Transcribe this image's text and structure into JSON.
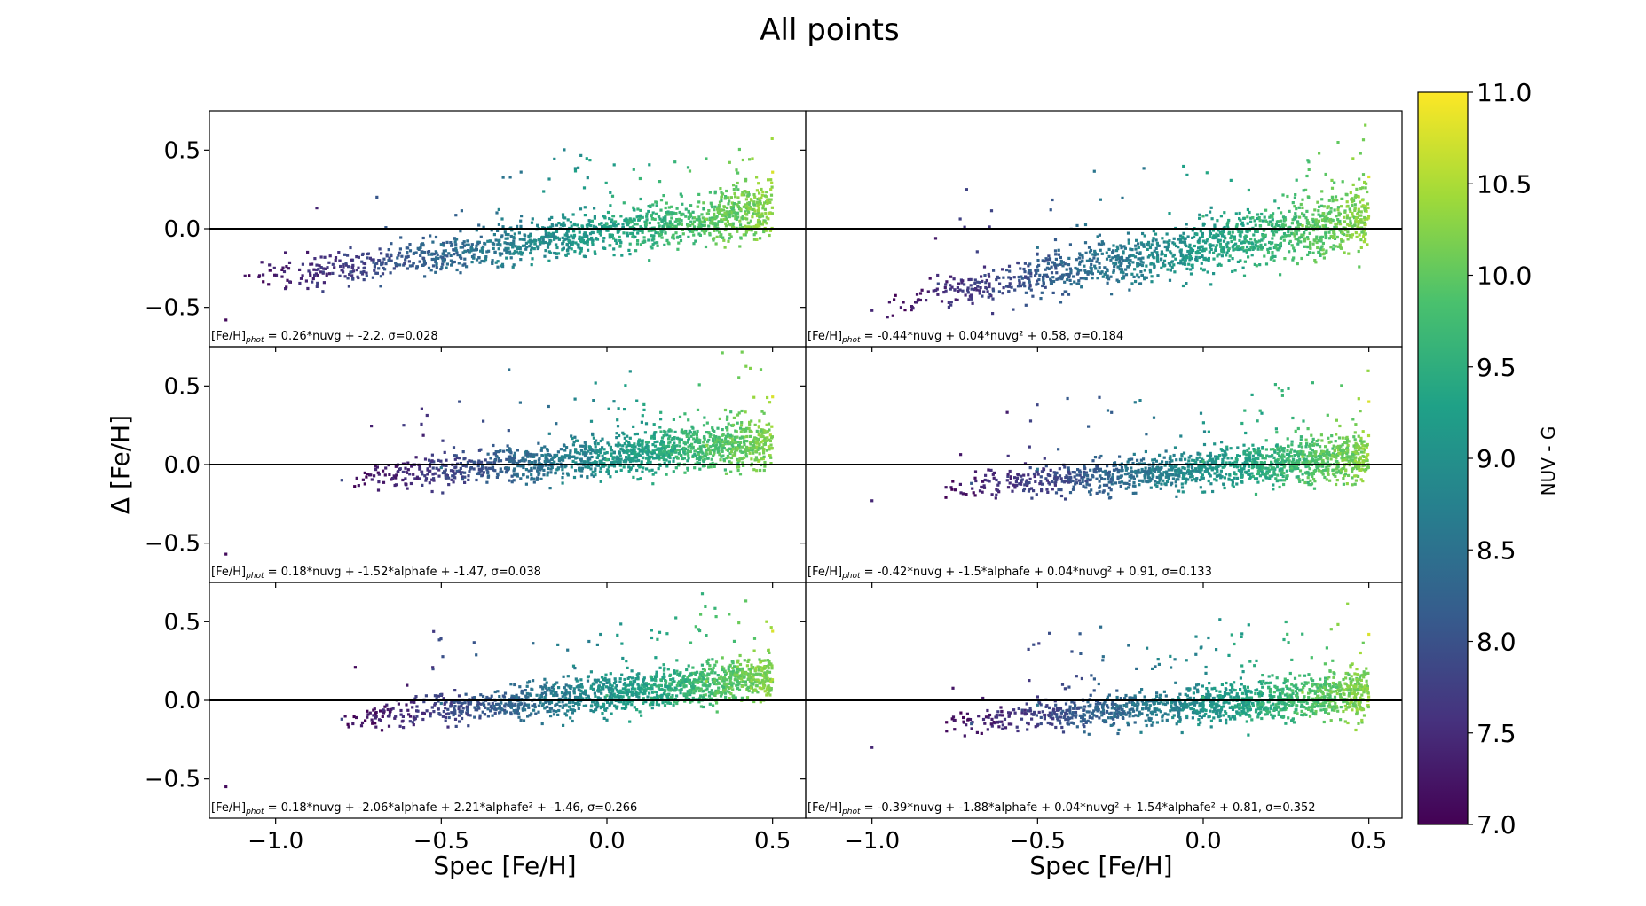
{
  "figure": {
    "title": "All points",
    "xlabel": "Spec [Fe/H]",
    "ylabel": "Δ [Fe/H]"
  },
  "colorbar": {
    "label": "NUV - G",
    "range": [
      7.0,
      11.0
    ],
    "ticks": [
      "7.0",
      "7.5",
      "8.0",
      "8.5",
      "9.0",
      "9.5",
      "10.0",
      "10.5",
      "11.0"
    ],
    "colormap": [
      "#440154",
      "#46327e",
      "#365c8d",
      "#277f8e",
      "#1fa187",
      "#4ac16d",
      "#a0da39",
      "#fde725"
    ]
  },
  "chart_data": [
    {
      "type": "scatter",
      "row": 0,
      "col": 0,
      "xlim": [
        -1.2,
        0.6
      ],
      "ylim": [
        -0.75,
        0.75
      ],
      "xticks": [
        "−1.0",
        "−0.5",
        "0.0",
        "0.5"
      ],
      "yticks": [
        "0.5",
        "0.0",
        "−0.5"
      ],
      "reference_line_y": 0.0,
      "annotation": "[Fe/H]phot = 0.26*nuvg + -2.2, σ=0.028",
      "trend": {
        "x_range": [
          -1.15,
          0.5
        ],
        "y_at_xmin": -0.35,
        "y_at_xmax": 0.12,
        "spread": 0.11
      },
      "sample_points": [
        [
          -1.15,
          -0.58
        ],
        [
          -0.9,
          -0.27
        ],
        [
          -0.5,
          -0.1
        ],
        [
          0.0,
          0.03
        ],
        [
          0.3,
          0.06
        ],
        [
          0.5,
          0.36
        ]
      ]
    },
    {
      "type": "scatter",
      "row": 0,
      "col": 1,
      "xlim": [
        -1.2,
        0.6
      ],
      "ylim": [
        -0.75,
        0.75
      ],
      "xticks": [
        "−1.0",
        "−0.5",
        "0.0",
        "0.5"
      ],
      "yticks": [],
      "reference_line_y": 0.0,
      "annotation": "[Fe/H]phot = -0.44*nuvg + 0.04*nuvg² + 0.58, σ=0.184",
      "trend": {
        "x_range": [
          -1.0,
          0.5
        ],
        "y_at_xmin": -0.5,
        "y_at_xmax": 0.08,
        "spread": 0.13
      },
      "sample_points": [
        [
          -1.0,
          -0.52
        ],
        [
          -0.8,
          -0.35
        ],
        [
          -0.5,
          -0.12
        ],
        [
          0.0,
          0.08
        ],
        [
          0.3,
          0.02
        ],
        [
          0.5,
          0.33
        ]
      ]
    },
    {
      "type": "scatter",
      "row": 1,
      "col": 0,
      "xlim": [
        -1.2,
        0.6
      ],
      "ylim": [
        -0.75,
        0.75
      ],
      "xticks": [
        "−1.0",
        "−0.5",
        "0.0",
        "0.5"
      ],
      "yticks": [
        "0.5",
        "0.0",
        "−0.5"
      ],
      "reference_line_y": 0.0,
      "annotation": "[Fe/H]phot = 0.18*nuvg + -1.52*alphafe + -1.47, σ=0.038",
      "trend": {
        "x_range": [
          -0.8,
          0.5
        ],
        "y_at_xmin": -0.1,
        "y_at_xmax": 0.15,
        "spread": 0.1
      },
      "sample_points": [
        [
          -1.15,
          -0.57
        ],
        [
          -0.8,
          -0.1
        ],
        [
          -0.5,
          -0.02
        ],
        [
          0.0,
          0.03
        ],
        [
          0.3,
          0.12
        ],
        [
          0.5,
          0.43
        ]
      ]
    },
    {
      "type": "scatter",
      "row": 1,
      "col": 1,
      "xlim": [
        -1.2,
        0.6
      ],
      "ylim": [
        -0.75,
        0.75
      ],
      "xticks": [
        "−1.0",
        "−0.5",
        "0.0",
        "0.5"
      ],
      "yticks": [],
      "reference_line_y": 0.0,
      "annotation": "[Fe/H]phot = -0.42*nuvg + -1.5*alphafe + 0.04*nuvg² + 0.91, σ=0.133",
      "trend": {
        "x_range": [
          -0.8,
          0.5
        ],
        "y_at_xmin": -0.15,
        "y_at_xmax": 0.05,
        "spread": 0.1
      },
      "sample_points": [
        [
          -1.0,
          -0.23
        ],
        [
          -0.7,
          -0.12
        ],
        [
          -0.5,
          -0.03
        ],
        [
          0.0,
          0.02
        ],
        [
          0.3,
          0.05
        ],
        [
          0.5,
          0.4
        ]
      ]
    },
    {
      "type": "scatter",
      "row": 2,
      "col": 0,
      "xlim": [
        -1.2,
        0.6
      ],
      "ylim": [
        -0.75,
        0.75
      ],
      "xticks": [
        "−1.0",
        "−0.5",
        "0.0",
        "0.5"
      ],
      "yticks": [
        "0.5",
        "0.0",
        "−0.5"
      ],
      "reference_line_y": 0.0,
      "annotation": "[Fe/H]phot = 0.18*nuvg + -2.06*alphafe + 2.21*alphafe² + -1.46, σ=0.266",
      "trend": {
        "x_range": [
          -0.8,
          0.5
        ],
        "y_at_xmin": -0.12,
        "y_at_xmax": 0.15,
        "spread": 0.1
      },
      "sample_points": [
        [
          -1.15,
          -0.55
        ],
        [
          -0.8,
          -0.12
        ],
        [
          -0.5,
          -0.02
        ],
        [
          0.0,
          0.03
        ],
        [
          0.3,
          0.12
        ],
        [
          0.5,
          0.44
        ]
      ]
    },
    {
      "type": "scatter",
      "row": 2,
      "col": 1,
      "xlim": [
        -1.2,
        0.6
      ],
      "ylim": [
        -0.75,
        0.75
      ],
      "xticks": [
        "−1.0",
        "−0.5",
        "0.0",
        "0.5"
      ],
      "yticks": [],
      "reference_line_y": 0.0,
      "annotation": "[Fe/H]phot = -0.39*nuvg + -1.88*alphafe + 0.04*nuvg² + 1.54*alphafe² + 0.81, σ=0.352",
      "trend": {
        "x_range": [
          -0.8,
          0.5
        ],
        "y_at_xmin": -0.15,
        "y_at_xmax": 0.05,
        "spread": 0.1
      },
      "sample_points": [
        [
          -1.0,
          -0.3
        ],
        [
          -0.7,
          -0.15
        ],
        [
          -0.5,
          -0.03
        ],
        [
          0.0,
          0.02
        ],
        [
          0.3,
          0.05
        ],
        [
          0.5,
          0.42
        ]
      ]
    }
  ]
}
